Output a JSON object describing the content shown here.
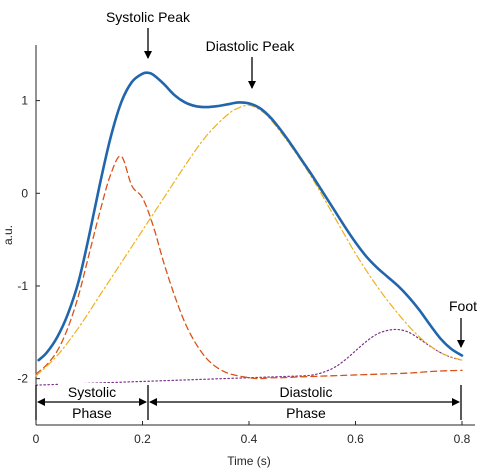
{
  "chart_data": {
    "type": "line",
    "title": "",
    "xlabel": "Time (s)",
    "ylabel": "a.u.",
    "xlim": [
      0,
      0.8
    ],
    "ylim": [
      -2.5,
      1.6
    ],
    "xticks": [
      0,
      0.2,
      0.4,
      0.6,
      0.8
    ],
    "xtick_labels": [
      "0",
      "0.2",
      "0.4",
      "0.6",
      "0.8"
    ],
    "yticks": [
      -2,
      -1,
      0,
      1
    ],
    "ytick_labels": [
      "-2",
      "-1",
      "0",
      "1"
    ],
    "grid": false,
    "legend": "none",
    "series": [
      {
        "style": "solid",
        "color": "#2166ac",
        "x": [
          0.005,
          0.02,
          0.04,
          0.06,
          0.08,
          0.1,
          0.12,
          0.14,
          0.16,
          0.18,
          0.2,
          0.21,
          0.22,
          0.24,
          0.26,
          0.28,
          0.3,
          0.32,
          0.34,
          0.36,
          0.38,
          0.4,
          0.42,
          0.44,
          0.46,
          0.48,
          0.5,
          0.52,
          0.54,
          0.56,
          0.58,
          0.6,
          0.62,
          0.64,
          0.66,
          0.68,
          0.7,
          0.72,
          0.74,
          0.76,
          0.78,
          0.8
        ],
        "y": [
          -1.8,
          -1.72,
          -1.55,
          -1.3,
          -0.95,
          -0.45,
          0.1,
          0.6,
          0.98,
          1.2,
          1.29,
          1.3,
          1.28,
          1.18,
          1.06,
          0.98,
          0.94,
          0.93,
          0.94,
          0.96,
          0.98,
          0.97,
          0.92,
          0.82,
          0.68,
          0.52,
          0.35,
          0.18,
          0.0,
          -0.18,
          -0.36,
          -0.53,
          -0.68,
          -0.8,
          -0.9,
          -1.0,
          -1.12,
          -1.26,
          -1.42,
          -1.57,
          -1.68,
          -1.75
        ]
      },
      {
        "style": "dashed",
        "color": "#d95319",
        "x": [
          0.0,
          0.02,
          0.04,
          0.06,
          0.08,
          0.1,
          0.12,
          0.14,
          0.16,
          0.18,
          0.2,
          0.22,
          0.24,
          0.26,
          0.28,
          0.3,
          0.32,
          0.34,
          0.36,
          0.38,
          0.4,
          0.42,
          0.44,
          0.46,
          0.5,
          0.55,
          0.6,
          0.65,
          0.7,
          0.75,
          0.8
        ],
        "y": [
          -1.95,
          -1.85,
          -1.7,
          -1.45,
          -1.1,
          -0.65,
          -0.2,
          0.2,
          0.4,
          0.08,
          -0.05,
          -0.35,
          -0.75,
          -1.1,
          -1.4,
          -1.62,
          -1.78,
          -1.88,
          -1.94,
          -1.97,
          -1.99,
          -2.0,
          -1.99,
          -1.99,
          -1.98,
          -1.97,
          -1.96,
          -1.95,
          -1.94,
          -1.92,
          -1.91
        ]
      },
      {
        "style": "dashdot",
        "color": "#edb120",
        "x": [
          0.0,
          0.04,
          0.08,
          0.12,
          0.16,
          0.2,
          0.24,
          0.28,
          0.32,
          0.36,
          0.38,
          0.4,
          0.42,
          0.44,
          0.48,
          0.52,
          0.56,
          0.6,
          0.64,
          0.68,
          0.72,
          0.76,
          0.8
        ],
        "y": [
          -1.97,
          -1.75,
          -1.45,
          -1.1,
          -0.75,
          -0.4,
          -0.05,
          0.3,
          0.62,
          0.85,
          0.92,
          0.95,
          0.9,
          0.8,
          0.5,
          0.15,
          -0.25,
          -0.65,
          -1.0,
          -1.3,
          -1.55,
          -1.72,
          -1.8
        ]
      },
      {
        "style": "dotted",
        "color": "#7e2f8e",
        "x": [
          0.0,
          0.1,
          0.2,
          0.3,
          0.4,
          0.45,
          0.5,
          0.52,
          0.54,
          0.56,
          0.58,
          0.6,
          0.62,
          0.64,
          0.66,
          0.68,
          0.7,
          0.72,
          0.74,
          0.76,
          0.78,
          0.8
        ],
        "y": [
          -2.07,
          -2.05,
          -2.03,
          -2.01,
          -1.99,
          -1.98,
          -1.97,
          -1.96,
          -1.93,
          -1.88,
          -1.8,
          -1.7,
          -1.6,
          -1.52,
          -1.48,
          -1.47,
          -1.5,
          -1.57,
          -1.65,
          -1.72,
          -1.77,
          -1.8
        ]
      }
    ],
    "annotations": {
      "systolic_peak": {
        "label": "Systolic Peak",
        "x": 0.21,
        "y": 1.3
      },
      "diastolic_peak": {
        "label": "Diastolic Peak",
        "x": 0.405,
        "y": 0.98
      },
      "foot": {
        "label": "Foot",
        "x": 0.8,
        "y": -1.75
      }
    },
    "phases": {
      "systolic": {
        "label_line1": "Systolic",
        "label_line2": "Phase",
        "x_start": 0.0,
        "x_end": 0.21
      },
      "diastolic": {
        "label_line1": "Diastolic",
        "label_line2": "Phase",
        "x_start": 0.21,
        "x_end": 0.8
      }
    }
  }
}
